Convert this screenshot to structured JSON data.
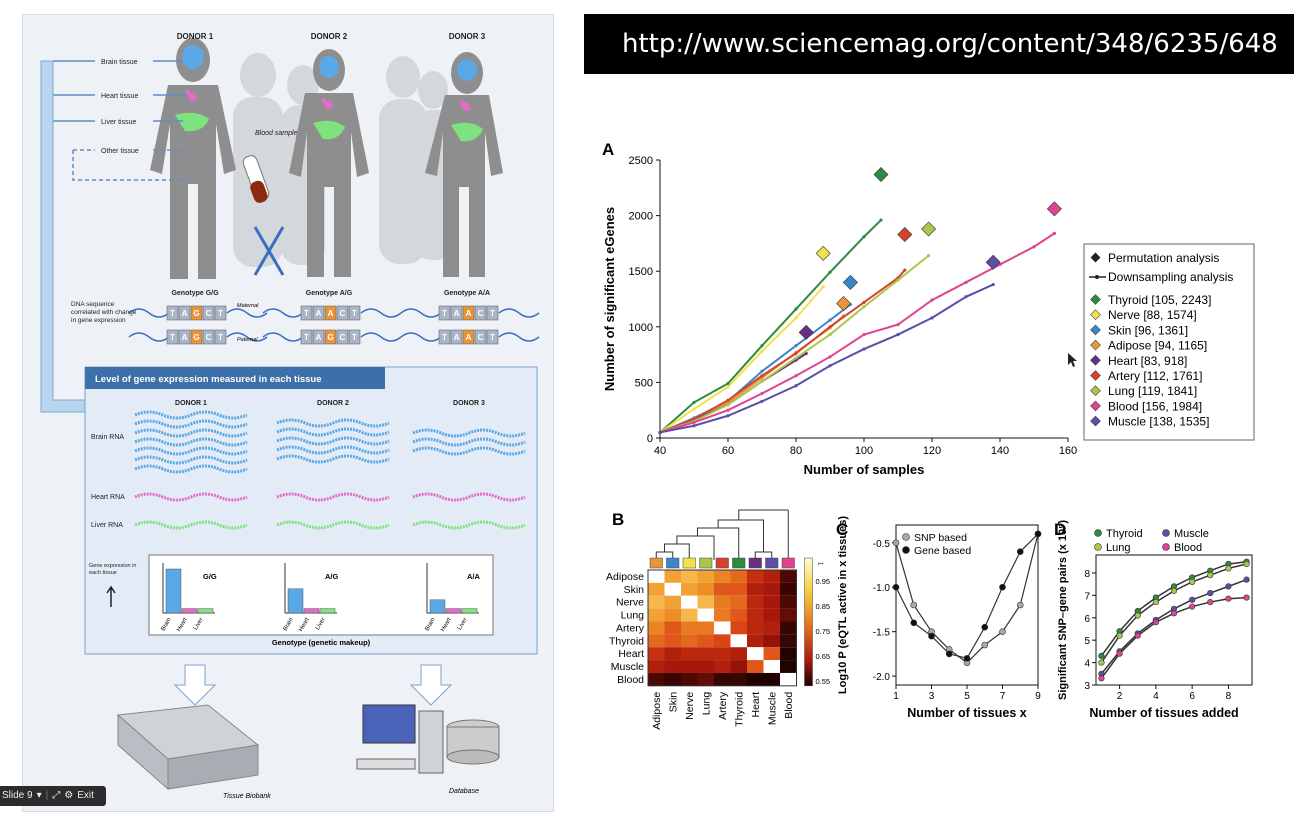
{
  "url_banner": {
    "text": "http://www.sciencemag.org/content/348/6235/648"
  },
  "slide_control": {
    "label": "Slide 9",
    "dropdown": "▾",
    "exit_label": "Exit"
  },
  "left_figure": {
    "donors": [
      "DONOR 1",
      "DONOR 2",
      "DONOR 3"
    ],
    "tissues": [
      "Brain tissue",
      "Heart tissue",
      "Liver tissue",
      "Other tissue"
    ],
    "blood_sample": "Blood sample",
    "genotypes": [
      "Genotype G/G",
      "Genotype A/G",
      "Genotype A/A"
    ],
    "dna_note": "DNA sequence correlated with change in gene expression",
    "maternal": "Maternal",
    "paternal": "Paternal",
    "dna_bases": [
      "T",
      "A",
      "G",
      "C",
      "T"
    ],
    "expression_title": "Level of gene expression measured in each tissue",
    "rna_labels": [
      "Brain RNA",
      "Heart RNA",
      "Liver RNA"
    ],
    "genexp_label": "Gene expression in each tissue",
    "bar_groups": [
      {
        "genotype": "G/G",
        "brain": 1.0,
        "heart": 0.1,
        "liver": 0.1
      },
      {
        "genotype": "A/G",
        "brain": 0.55,
        "heart": 0.1,
        "liver": 0.1
      },
      {
        "genotype": "A/A",
        "brain": 0.3,
        "heart": 0.1,
        "liver": 0.1
      }
    ],
    "bar_xlabels": [
      "Brain",
      "Heart",
      "Liver"
    ],
    "genotype_axis": "Genotype (genetic makeup)",
    "biobank": "Tissue Biobank",
    "database": "Database",
    "colors": {
      "brain": "#5aa8e6",
      "heart": "#e46cc8",
      "liver": "#7ee27e",
      "panel": "#3d6fa8"
    }
  },
  "chart_data": [
    {
      "panel": "A",
      "type": "line+scatter",
      "xlabel": "Number of samples",
      "ylabel": "Number of significant eGenes",
      "xlim": [
        40,
        160
      ],
      "ylim": [
        0,
        2500
      ],
      "xticks": [
        40,
        60,
        80,
        100,
        120,
        140,
        160
      ],
      "yticks": [
        0,
        500,
        1000,
        1500,
        2000,
        2500
      ],
      "legend_keys": [
        "Permutation analysis",
        "Downsampling analysis"
      ],
      "legend_position": "right",
      "series": [
        {
          "name": "Thyroid [105, 2243]",
          "color": "#2e8b3e",
          "line": [
            [
              40,
              50
            ],
            [
              50,
              320
            ],
            [
              60,
              490
            ],
            [
              70,
              830
            ],
            [
              80,
              1160
            ],
            [
              90,
              1490
            ],
            [
              100,
              1810
            ],
            [
              105,
              1960
            ]
          ],
          "perm": [
            105,
            2370
          ]
        },
        {
          "name": "Nerve [88, 1574]",
          "color": "#f2e14a",
          "line": [
            [
              40,
              50
            ],
            [
              50,
              260
            ],
            [
              60,
              460
            ],
            [
              70,
              780
            ],
            [
              80,
              1080
            ],
            [
              88,
              1360
            ]
          ],
          "perm": [
            88,
            1660
          ]
        },
        {
          "name": "Skin [96, 1361]",
          "color": "#3a86c8",
          "line": [
            [
              40,
              50
            ],
            [
              50,
              180
            ],
            [
              60,
              330
            ],
            [
              70,
              600
            ],
            [
              80,
              830
            ],
            [
              90,
              1060
            ],
            [
              96,
              1200
            ]
          ],
          "perm": [
            96,
            1400
          ]
        },
        {
          "name": "Adipose [94, 1165]",
          "color": "#e8943a",
          "line": [
            [
              40,
              50
            ],
            [
              50,
              170
            ],
            [
              60,
              320
            ],
            [
              70,
              540
            ],
            [
              80,
              770
            ],
            [
              90,
              990
            ],
            [
              94,
              1100
            ]
          ],
          "perm": [
            94,
            1210
          ]
        },
        {
          "name": "Heart [83, 918]",
          "color": "#6a2f82",
          "line": [
            [
              40,
              50
            ],
            [
              50,
              160
            ],
            [
              60,
              300
            ],
            [
              70,
              510
            ],
            [
              80,
              700
            ],
            [
              83,
              760
            ]
          ],
          "perm": [
            83,
            950
          ]
        },
        {
          "name": "Artery [112, 1761]",
          "color": "#d8412c",
          "line": [
            [
              40,
              50
            ],
            [
              50,
              170
            ],
            [
              60,
              340
            ],
            [
              70,
              560
            ],
            [
              80,
              760
            ],
            [
              90,
              1000
            ],
            [
              100,
              1220
            ],
            [
              110,
              1440
            ],
            [
              112,
              1510
            ]
          ],
          "perm": [
            112,
            1830
          ]
        },
        {
          "name": "Lung [119, 1841]",
          "color": "#a8c84a",
          "line": [
            [
              40,
              50
            ],
            [
              50,
              150
            ],
            [
              60,
              300
            ],
            [
              70,
              510
            ],
            [
              80,
              720
            ],
            [
              90,
              930
            ],
            [
              100,
              1180
            ],
            [
              110,
              1420
            ],
            [
              119,
              1640
            ]
          ],
          "perm": [
            119,
            1880
          ]
        },
        {
          "name": "Blood [156, 1984]",
          "color": "#e0438f",
          "line": [
            [
              40,
              50
            ],
            [
              50,
              140
            ],
            [
              60,
              250
            ],
            [
              70,
              400
            ],
            [
              80,
              560
            ],
            [
              90,
              730
            ],
            [
              100,
              930
            ],
            [
              110,
              1020
            ],
            [
              120,
              1240
            ],
            [
              130,
              1400
            ],
            [
              140,
              1560
            ],
            [
              150,
              1720
            ],
            [
              156,
              1840
            ]
          ],
          "perm": [
            156,
            2060
          ]
        },
        {
          "name": "Muscle [138, 1535]",
          "color": "#5b4fa8",
          "line": [
            [
              40,
              50
            ],
            [
              50,
              110
            ],
            [
              60,
              200
            ],
            [
              70,
              330
            ],
            [
              80,
              470
            ],
            [
              90,
              650
            ],
            [
              100,
              800
            ],
            [
              110,
              930
            ],
            [
              120,
              1080
            ],
            [
              130,
              1270
            ],
            [
              138,
              1380
            ]
          ],
          "perm": [
            138,
            1580
          ]
        }
      ]
    },
    {
      "panel": "B",
      "type": "heatmap",
      "labels": [
        "Adipose",
        "Skin",
        "Nerve",
        "Lung",
        "Artery",
        "Thyroid",
        "Heart",
        "Muscle",
        "Blood"
      ],
      "header_colors": [
        "#e8943a",
        "#3a86c8",
        "#f2e14a",
        "#a8c84a",
        "#d8412c",
        "#2e8b3e",
        "#6a2f82",
        "#5b4fa8",
        "#e0438f"
      ],
      "scale_ticks": [
        "0.95",
        "0.85",
        "0.75",
        "0.65",
        "0.55"
      ],
      "scale_max": "1",
      "matrix": [
        [
          1.0,
          0.88,
          0.9,
          0.88,
          0.85,
          0.82,
          0.74,
          0.7,
          0.6
        ],
        [
          0.88,
          1.0,
          0.88,
          0.86,
          0.8,
          0.8,
          0.7,
          0.68,
          0.58
        ],
        [
          0.9,
          0.88,
          1.0,
          0.9,
          0.84,
          0.82,
          0.72,
          0.68,
          0.6
        ],
        [
          0.88,
          0.86,
          0.9,
          1.0,
          0.84,
          0.8,
          0.72,
          0.68,
          0.62
        ],
        [
          0.85,
          0.8,
          0.84,
          0.84,
          1.0,
          0.78,
          0.72,
          0.7,
          0.58
        ],
        [
          0.82,
          0.8,
          0.82,
          0.8,
          0.78,
          1.0,
          0.7,
          0.66,
          0.58
        ],
        [
          0.74,
          0.7,
          0.72,
          0.72,
          0.72,
          0.7,
          1.0,
          0.8,
          0.56
        ],
        [
          0.7,
          0.68,
          0.68,
          0.68,
          0.7,
          0.66,
          0.8,
          1.0,
          0.56
        ],
        [
          0.6,
          0.58,
          0.6,
          0.62,
          0.58,
          0.58,
          0.56,
          0.56,
          1.0
        ]
      ]
    },
    {
      "panel": "C",
      "type": "line",
      "xlabel": "Number of tissues x",
      "ylabel": "Log10 P (eQTL active in x tissues)",
      "xlim": [
        1,
        9
      ],
      "ylim": [
        -2.1,
        -0.3
      ],
      "xticks": [
        1,
        3,
        5,
        7,
        9
      ],
      "yticks": [
        -0.5,
        -1.0,
        -1.5,
        -2.0
      ],
      "ytick_labels": [
        "-0.5",
        "-1.0",
        "-1.5",
        "-2.0"
      ],
      "series": [
        {
          "name": "SNP based",
          "color": "#aaaaaa",
          "x": [
            1,
            2,
            3,
            4,
            5,
            6,
            7,
            8,
            9
          ],
          "y": [
            -0.5,
            -1.2,
            -1.5,
            -1.7,
            -1.85,
            -1.65,
            -1.5,
            -1.2,
            -0.4
          ]
        },
        {
          "name": "Gene based",
          "color": "#111111",
          "x": [
            1,
            2,
            3,
            4,
            5,
            6,
            7,
            8,
            9
          ],
          "y": [
            -1.0,
            -1.4,
            -1.55,
            -1.75,
            -1.8,
            -1.45,
            -1.0,
            -0.6,
            -0.4
          ]
        }
      ]
    },
    {
      "panel": "D",
      "type": "line",
      "xlabel": "Number of tissues added",
      "ylabel": "Significant SNP–gene pairs (x 10⁵)",
      "xlim": [
        0.7,
        9.3
      ],
      "ylim": [
        3,
        8.8
      ],
      "xticks": [
        2,
        4,
        6,
        8
      ],
      "yticks": [
        3,
        4,
        5,
        6,
        7,
        8
      ],
      "series": [
        {
          "name": "Thyroid",
          "color": "#2e8b3e",
          "x": [
            1,
            2,
            3,
            4,
            5,
            6,
            7,
            8,
            9
          ],
          "y": [
            4.3,
            5.4,
            6.3,
            6.9,
            7.4,
            7.8,
            8.1,
            8.4,
            8.5
          ]
        },
        {
          "name": "Lung",
          "color": "#a8c84a",
          "x": [
            1,
            2,
            3,
            4,
            5,
            6,
            7,
            8,
            9
          ],
          "y": [
            4.0,
            5.2,
            6.1,
            6.7,
            7.2,
            7.6,
            7.9,
            8.2,
            8.4
          ]
        },
        {
          "name": "Muscle",
          "color": "#5b4fa8",
          "x": [
            1,
            2,
            3,
            4,
            5,
            6,
            7,
            8,
            9
          ],
          "y": [
            3.5,
            4.5,
            5.3,
            5.9,
            6.4,
            6.8,
            7.1,
            7.4,
            7.7
          ]
        },
        {
          "name": "Blood",
          "color": "#e0438f",
          "x": [
            1,
            2,
            3,
            4,
            5,
            6,
            7,
            8,
            9
          ],
          "y": [
            3.3,
            4.4,
            5.2,
            5.8,
            6.2,
            6.5,
            6.7,
            6.85,
            6.9
          ]
        }
      ]
    }
  ]
}
